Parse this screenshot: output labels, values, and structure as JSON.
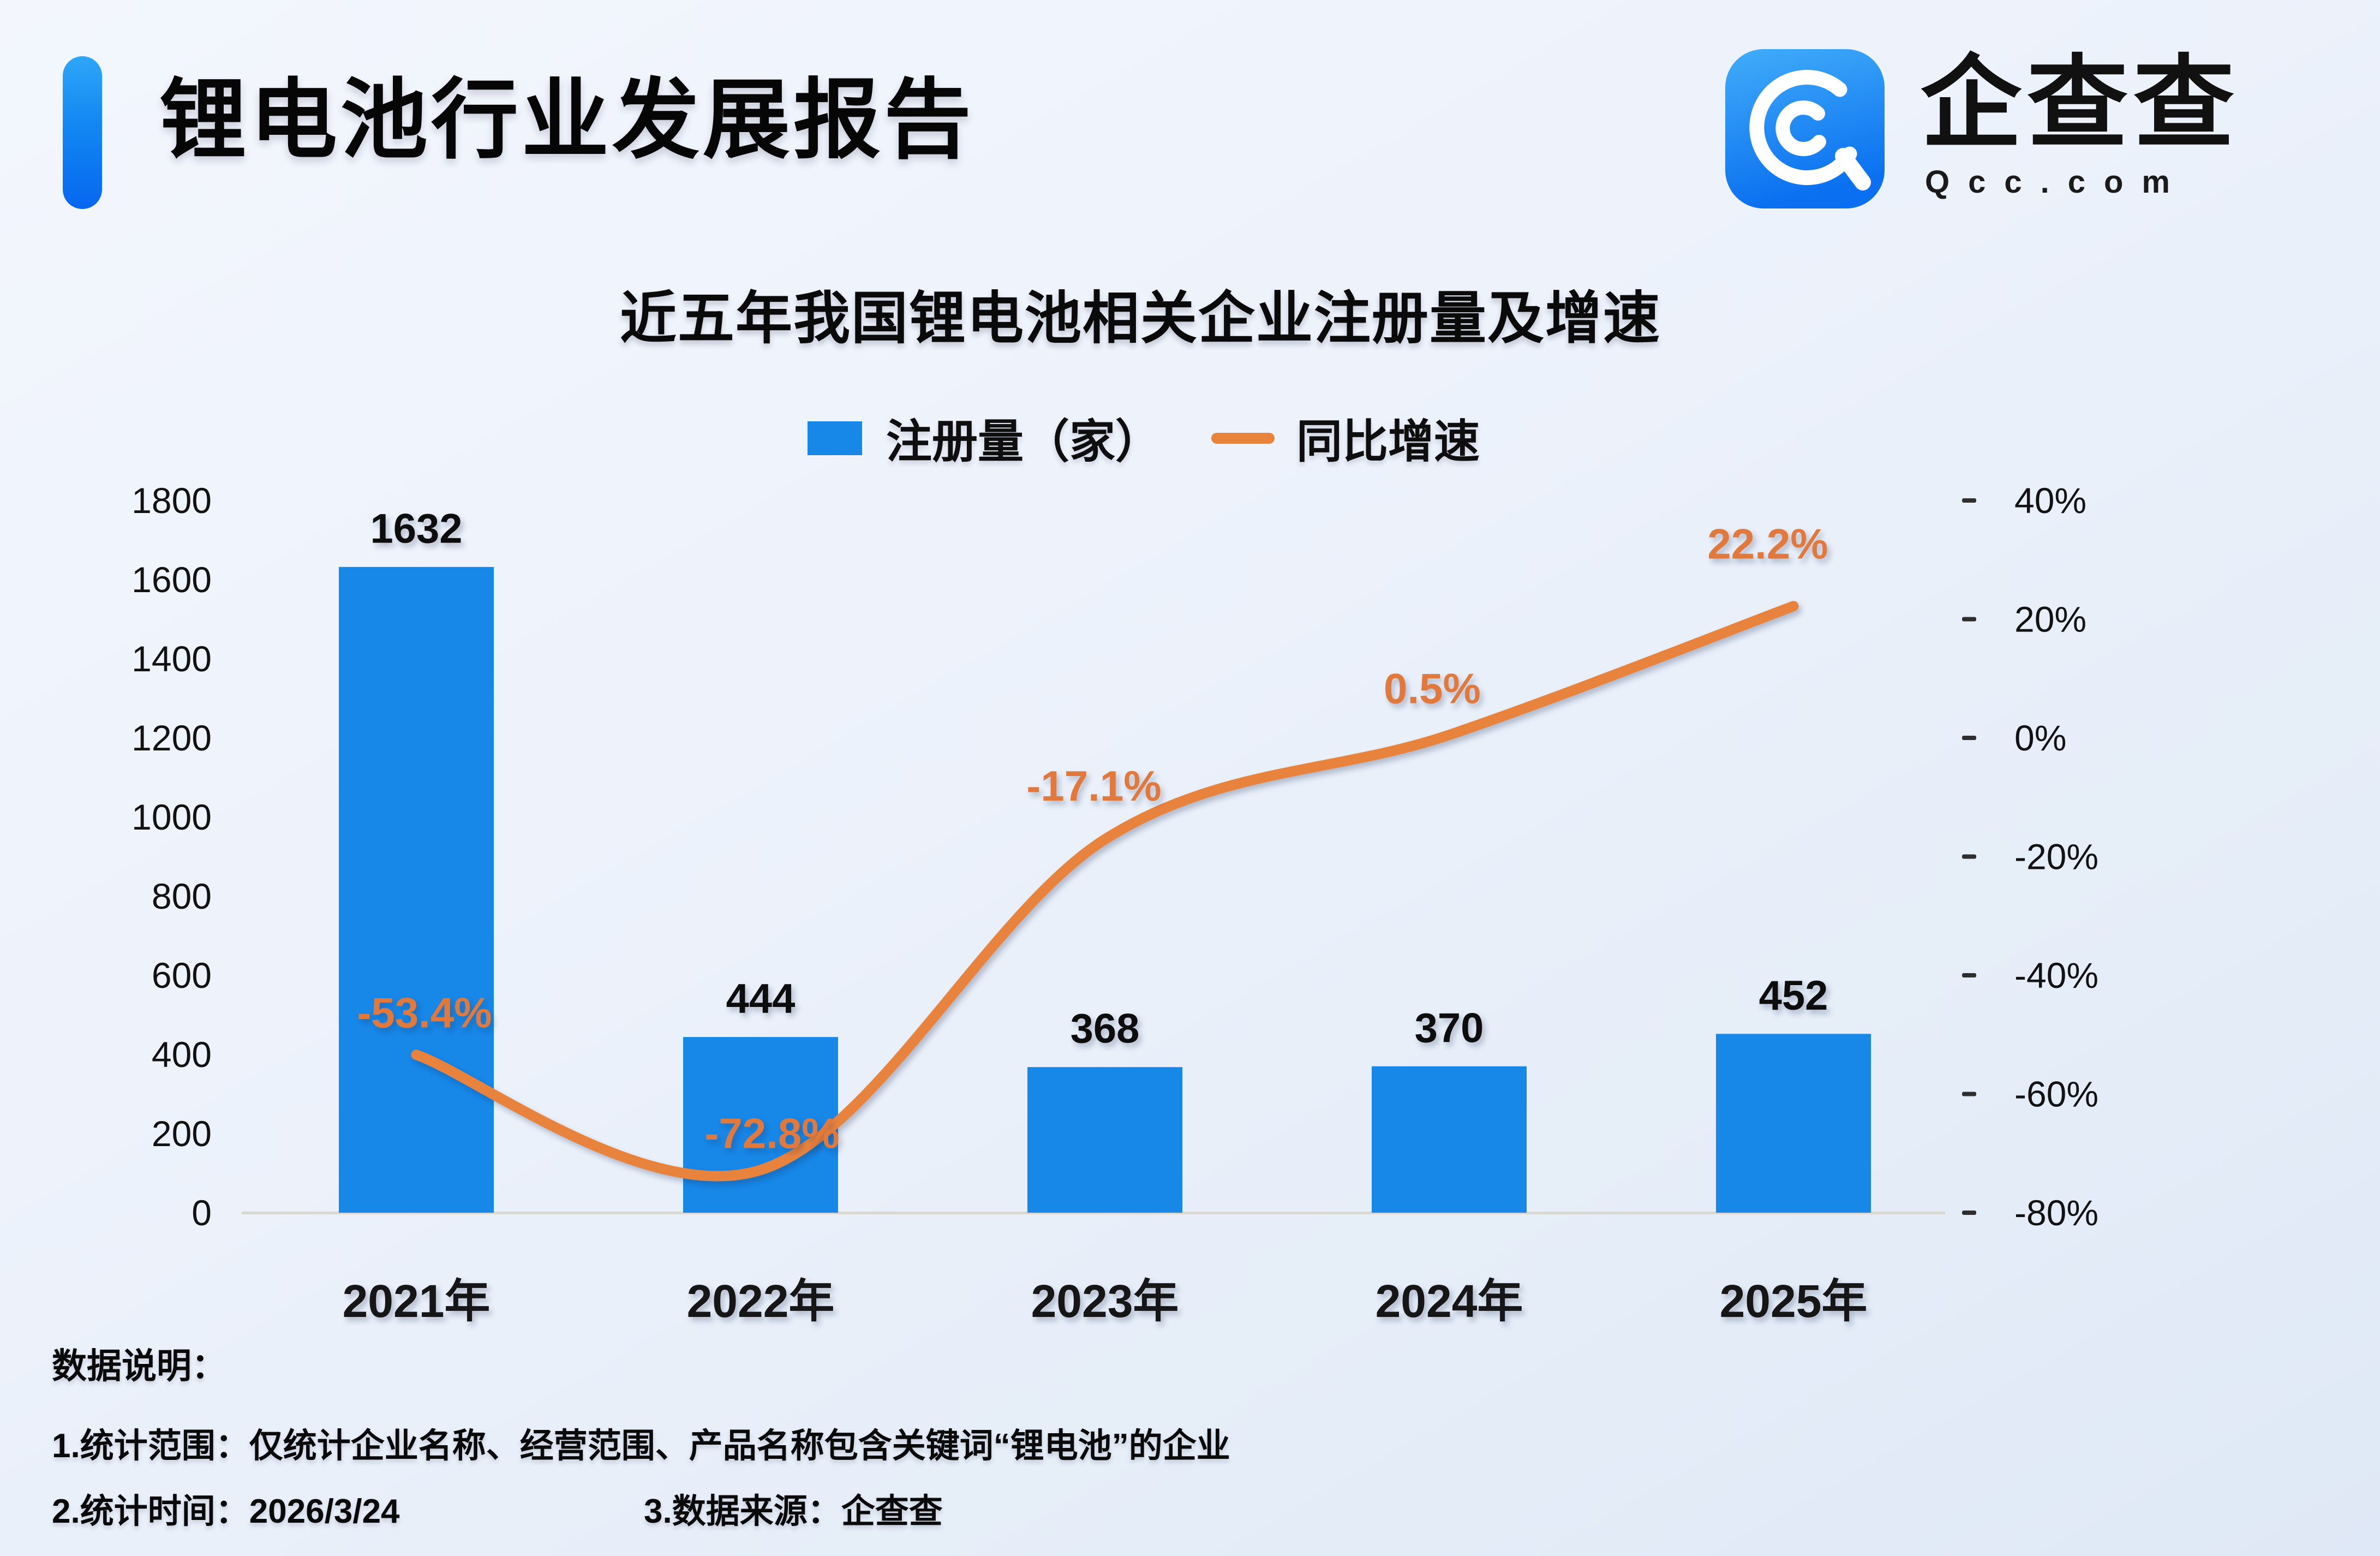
{
  "header": {
    "report_title": "锂电池行业发展报告",
    "brand_cn": "企查查",
    "brand_en": "Qcc.com"
  },
  "chart": {
    "title": "近五年我国锂电池相关企业注册量及增速",
    "legend": {
      "bar_label": "注册量（家）",
      "line_label": "同比增速"
    }
  },
  "chart_data": {
    "type": "bar",
    "title": "近五年我国锂电池相关企业注册量及增速",
    "categories": [
      "2021年",
      "2022年",
      "2023年",
      "2024年",
      "2025年"
    ],
    "series": [
      {
        "name": "注册量（家）",
        "type": "bar",
        "values": [
          1632,
          444,
          368,
          370,
          452
        ],
        "labels": [
          "1632",
          "444",
          "368",
          "370",
          "452"
        ],
        "color": "#1787e8",
        "axis": "left"
      },
      {
        "name": "同比增速",
        "type": "line",
        "values": [
          -53.4,
          -72.8,
          -17.1,
          0.5,
          22.2
        ],
        "labels": [
          "-53.4%",
          "-72.8%",
          "-17.1%",
          "0.5%",
          "22.2%"
        ],
        "color": "#e8833c",
        "axis": "right"
      }
    ],
    "left_axis": {
      "ticks": [
        1800,
        1600,
        1400,
        1200,
        1000,
        800,
        600,
        400,
        200,
        0
      ],
      "range": [
        0,
        1800
      ]
    },
    "right_axis": {
      "tick_labels": [
        "40%",
        "20%",
        "0%",
        "-20%",
        "-40%",
        "-60%",
        "-80%"
      ],
      "tick_values": [
        40,
        20,
        0,
        -20,
        -40,
        -60,
        -80
      ],
      "range": [
        -80,
        40
      ]
    },
    "grid": false,
    "legend_position": "top",
    "xlabel": "",
    "ylabel": ""
  },
  "notes": {
    "heading": "数据说明：",
    "line1": "1.统计范围：仅统计企业名称、经营范围、产品名称包含关键词“锂电池”的企业",
    "line2_part1": "2.统计时间：2026/3/24",
    "line2_part2": "3.数据来源：企查查"
  },
  "colors": {
    "bar": "#1787e8",
    "line": "#e8833c",
    "pct_label": "#e0793a",
    "axis_line": "#d8d8d5",
    "accent_gradient_top": "#2ea6f8",
    "accent_gradient_bottom": "#0667f0",
    "text": "#0a0a0a"
  }
}
